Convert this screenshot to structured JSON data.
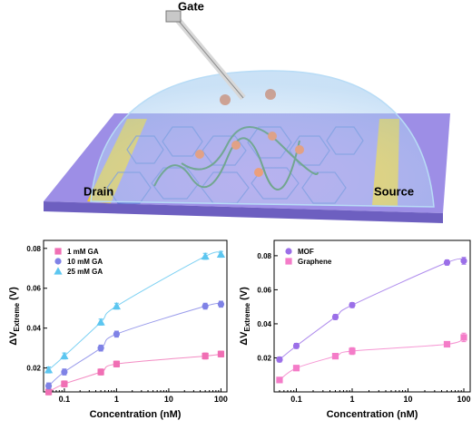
{
  "illustration": {
    "gate": "Gate",
    "drain": "Drain",
    "source": "Source"
  },
  "chart_data": [
    {
      "type": "scatter",
      "x_label": "Concentration (nM)",
      "y_label": "ΔV",
      "y_label_sub": "Extreme",
      "y_label_unit": "(V)",
      "x": [
        0.05,
        0.1,
        0.5,
        1,
        50,
        100
      ],
      "x_log": true,
      "xlim": [
        0.04,
        130
      ],
      "xticks": [
        0.1,
        1,
        10,
        100
      ],
      "ylim": [
        0.008,
        0.084
      ],
      "yticks": [
        0.02,
        0.04,
        0.06,
        0.08
      ],
      "legend": "upper left",
      "series": [
        {
          "name": "1 mM GA",
          "color": "#f06fb4",
          "marker": "square",
          "values": [
            0.008,
            0.012,
            0.018,
            0.022,
            0.026,
            0.027
          ],
          "errors": [
            0.0015,
            0.0015,
            0.0015,
            0.0015,
            0.0015,
            0.0015
          ]
        },
        {
          "name": "10 mM GA",
          "color": "#7f82e6",
          "marker": "circle",
          "values": [
            0.011,
            0.018,
            0.03,
            0.037,
            0.051,
            0.052
          ],
          "errors": [
            0.0015,
            0.0015,
            0.0015,
            0.0015,
            0.0015,
            0.0015
          ]
        },
        {
          "name": "25 mM GA",
          "color": "#5cc6f0",
          "marker": "triangle",
          "values": [
            0.019,
            0.026,
            0.043,
            0.051,
            0.076,
            0.077
          ],
          "errors": [
            0.0015,
            0.0015,
            0.0015,
            0.0015,
            0.0015,
            0.0015
          ]
        }
      ]
    },
    {
      "type": "scatter",
      "x_label": "Concentration (nM)",
      "y_label": "ΔV",
      "y_label_sub": "Extreme",
      "y_label_unit": "(V)",
      "x": [
        0.05,
        0.1,
        0.5,
        1,
        50,
        100
      ],
      "x_log": true,
      "xlim": [
        0.04,
        130
      ],
      "xticks": [
        0.1,
        1,
        10,
        100
      ],
      "ylim": [
        0.0,
        0.089
      ],
      "yticks": [
        0.02,
        0.04,
        0.06,
        0.08
      ],
      "legend": "upper left",
      "series": [
        {
          "name": "MOF",
          "color": "#9b6fe8",
          "marker": "circle",
          "values": [
            0.019,
            0.027,
            0.044,
            0.051,
            0.076,
            0.077
          ],
          "errors": [
            0.0015,
            0.0015,
            0.0015,
            0.0015,
            0.0015,
            0.002
          ]
        },
        {
          "name": "Graphene",
          "color": "#f47cc8",
          "marker": "square",
          "values": [
            0.007,
            0.014,
            0.021,
            0.024,
            0.028,
            0.032
          ],
          "errors": [
            0.0015,
            0.0015,
            0.0015,
            0.002,
            0.0015,
            0.0025
          ]
        }
      ]
    }
  ]
}
